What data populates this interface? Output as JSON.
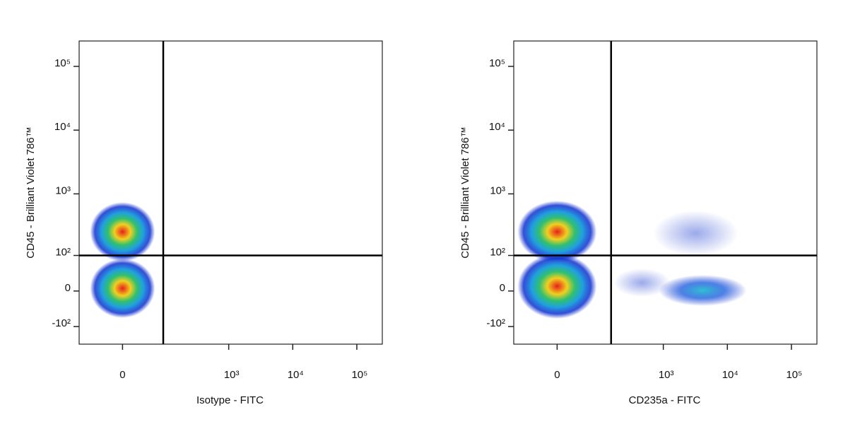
{
  "chart_data": [
    {
      "type": "scatter",
      "scale": "biexponential",
      "xlabel": "Isotype - FITC",
      "ylabel": "CD45 - Brilliant Violet 786™",
      "xlim": [
        -100,
        250000
      ],
      "ylim": [
        -200,
        250000
      ],
      "xticks": [
        0,
        {
          "value": 1000,
          "label": "10³"
        },
        {
          "value": 10000,
          "label": "10⁴"
        },
        {
          "value": 100000,
          "label": "10⁵"
        }
      ],
      "yticks": [
        {
          "value": -100,
          "label": "-10²"
        },
        0,
        {
          "value": 100,
          "label": "10²"
        },
        {
          "value": 1000,
          "label": "10³"
        },
        {
          "value": 10000,
          "label": "10⁴"
        },
        {
          "value": 100000,
          "label": "10⁵"
        }
      ],
      "gates": {
        "x": 90,
        "y": 100
      }
    },
    {
      "type": "scatter",
      "scale": "biexponential",
      "xlabel": "CD235a - FITC",
      "ylabel": "CD45 - Brilliant Violet 786™",
      "xlim": [
        -100,
        250000
      ],
      "ylim": [
        -200,
        250000
      ],
      "xticks": [
        0,
        {
          "value": 1000,
          "label": "10³"
        },
        {
          "value": 10000,
          "label": "10⁴"
        },
        {
          "value": 100000,
          "label": "10⁵"
        }
      ],
      "yticks": [
        {
          "value": -100,
          "label": "-10²"
        },
        0,
        {
          "value": 100,
          "label": "10²"
        },
        {
          "value": 1000,
          "label": "10³"
        },
        {
          "value": 10000,
          "label": "10⁴"
        },
        {
          "value": 100000,
          "label": "10⁵"
        }
      ],
      "gates": {
        "x": 150,
        "y": 100
      }
    }
  ]
}
